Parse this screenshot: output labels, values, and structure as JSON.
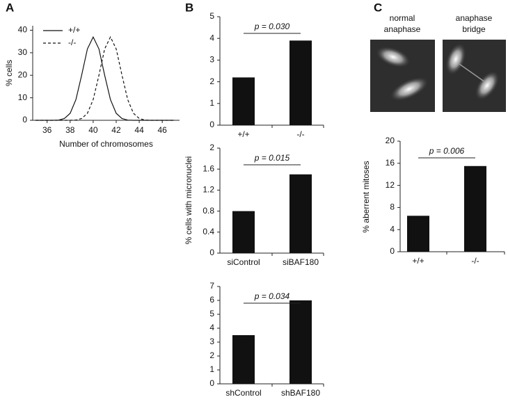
{
  "chart_data": [
    {
      "type": "line",
      "panel": "A",
      "xlabel": "Number of chromosomes",
      "ylabel": "% cells",
      "x": [
        35,
        35.5,
        36,
        36.5,
        37,
        37.5,
        38,
        38.5,
        39,
        39.5,
        40,
        40.5,
        41,
        41.5,
        42,
        42.5,
        43,
        43.5,
        44,
        44.5,
        45,
        45.5,
        46,
        46.5,
        47
      ],
      "series": [
        {
          "name": "+/+",
          "color": "#111111",
          "dash": false,
          "values": [
            0,
            0,
            0,
            0,
            0.1,
            0.8,
            3.1,
            9.2,
            20,
            31.7,
            37,
            31.7,
            20,
            9.2,
            3.1,
            0.8,
            0.1,
            0,
            0,
            0,
            0,
            0,
            0,
            0,
            0
          ]
        },
        {
          "name": "-/-",
          "color": "#111111",
          "dash": true,
          "values": [
            0,
            0,
            0,
            0,
            0,
            0,
            0,
            0.1,
            0.8,
            3.1,
            9.2,
            20,
            31.7,
            37,
            31.7,
            20,
            9.2,
            3.1,
            0.8,
            0.1,
            0,
            0,
            0,
            0,
            0
          ]
        }
      ],
      "xlim": [
        34.75,
        47.5
      ],
      "xticks": [
        36,
        38,
        40,
        42,
        44,
        46
      ],
      "ylim": [
        0,
        42
      ],
      "yticks": [
        0,
        10,
        20,
        30,
        40
      ],
      "legend": "upper left"
    },
    {
      "type": "bar",
      "panel": "B",
      "categories": [
        "+/+",
        "-/-"
      ],
      "values": [
        2.2,
        3.9
      ],
      "color": "#111111",
      "ylim": [
        0,
        5
      ],
      "yticks": [
        0,
        1,
        2,
        3,
        4,
        5
      ],
      "annotation": "p = 0.030"
    },
    {
      "type": "bar",
      "ylabel": "% cells with micronuclei",
      "categories": [
        "siControl",
        "siBAF180"
      ],
      "values": [
        0.8,
        1.5
      ],
      "color": "#111111",
      "ylim": [
        0,
        2
      ],
      "yticks": [
        0,
        0.4,
        0.8,
        1.2,
        1.6,
        2
      ],
      "annotation": "p = 0.015"
    },
    {
      "type": "bar",
      "categories": [
        "shControl",
        "shBAF180"
      ],
      "values": [
        3.5,
        6
      ],
      "color": "#111111",
      "ylim": [
        0,
        7
      ],
      "yticks": [
        0,
        1,
        2,
        3,
        4,
        5,
        6,
        7
      ],
      "annotation": "p = 0.034"
    },
    {
      "type": "bar",
      "panel": "C",
      "ylabel": "% aberrent mitoses",
      "categories": [
        "+/+",
        "-/-"
      ],
      "values": [
        6.5,
        15.5
      ],
      "color": "#111111",
      "ylim": [
        0,
        20
      ],
      "yticks": [
        0,
        4,
        8,
        12,
        16,
        20
      ],
      "annotation": "p = 0.006"
    }
  ],
  "images": {
    "labels": [
      "normal anaphase",
      "anaphase bridge"
    ]
  }
}
